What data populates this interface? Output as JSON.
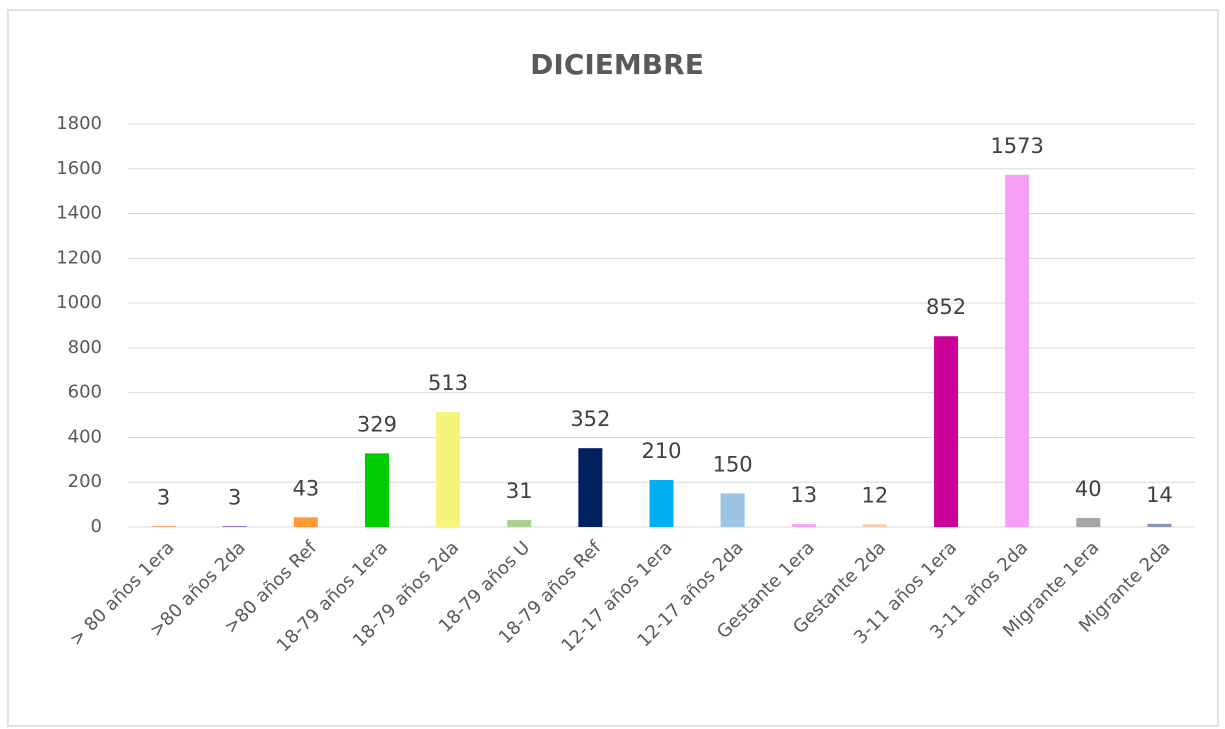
{
  "chart_data": {
    "type": "bar",
    "title": "DICIEMBRE",
    "categories": [
      "> 80 años 1era",
      ">80 años 2da",
      ">80 años Ref",
      "18-79 años 1era",
      "18-79 años 2da",
      "18-79 años U",
      "18-79 años Ref",
      "12-17 años 1era",
      "12-17 años 2da",
      "Gestante 1era",
      "Gestante 2da",
      "3-11 años 1era",
      "3-11 años 2da",
      "Migrante 1era",
      "Migrante 2da"
    ],
    "values": [
      3,
      3,
      43,
      329,
      513,
      31,
      352,
      210,
      150,
      13,
      12,
      852,
      1573,
      40,
      14
    ],
    "colors": [
      "#ed7d31",
      "#7030a0",
      "#ff9933",
      "#00cc00",
      "#f5f57a",
      "#a9d18e",
      "#002060",
      "#00b0f0",
      "#9dc3e6",
      "#f4a6f4",
      "#f8cbad",
      "#cc0099",
      "#f5a0f5",
      "#a6a6a6",
      "#8497b0"
    ],
    "ylim": [
      0,
      1800
    ],
    "yticks": [
      0,
      200,
      400,
      600,
      800,
      1000,
      1200,
      1400,
      1600,
      1800
    ],
    "grid": true
  }
}
